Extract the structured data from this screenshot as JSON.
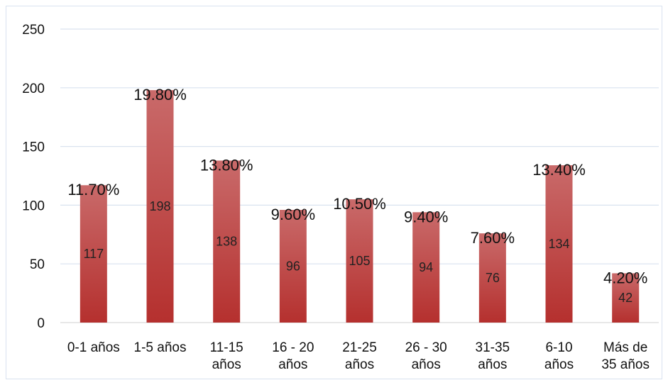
{
  "chart_data": {
    "type": "bar",
    "categories": [
      [
        "0-1 años"
      ],
      [
        "1-5 años"
      ],
      [
        "11-15",
        "años"
      ],
      [
        "16 - 20",
        "años"
      ],
      [
        "21-25",
        "años"
      ],
      [
        "26 - 30",
        "años"
      ],
      [
        "31-35",
        "años"
      ],
      [
        "6-10",
        "años"
      ],
      [
        "Más de",
        "35 años"
      ]
    ],
    "values": [
      117,
      198,
      138,
      96,
      105,
      94,
      76,
      134,
      42
    ],
    "percent_labels": [
      "11.70%",
      "19.80%",
      "13.80%",
      "9.60%",
      "10.50%",
      "9.40%",
      "7.60%",
      "13.40%",
      "4.20%"
    ],
    "ylim": [
      0,
      250
    ],
    "yticks": [
      0,
      50,
      100,
      150,
      200,
      250
    ],
    "grid": true,
    "legend": "none",
    "title": "",
    "xlabel": "",
    "ylabel": "",
    "colors": {
      "bar_top": "#c96a6a",
      "bar_bottom": "#b5302e",
      "grid": "#d9e2ef",
      "axis": "#d9d9d9"
    }
  }
}
